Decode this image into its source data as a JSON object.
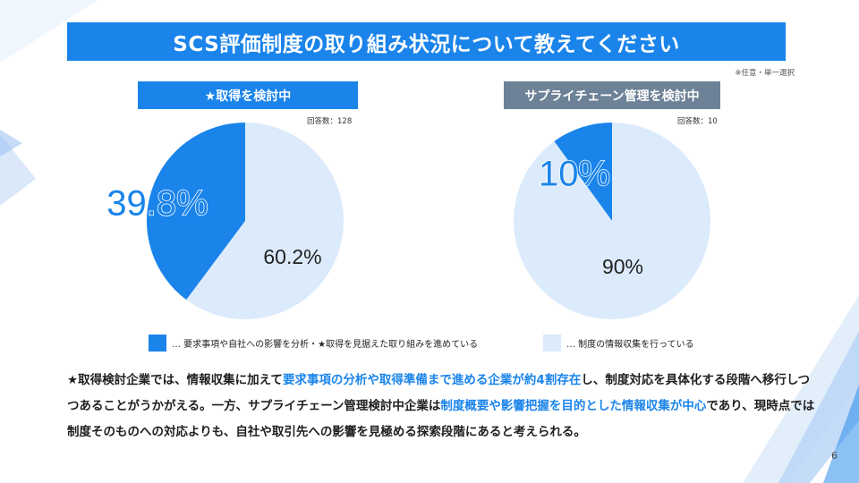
{
  "title": "SCS評価制度の取り組み状況について教えてください",
  "note": "※任意・単一選択",
  "colors": {
    "primary": "#1a84ea",
    "light": "#dcebfb",
    "gray_header": "#6d8297"
  },
  "panels": [
    {
      "header": "★取得を検討中",
      "respondents": "回答数：128"
    },
    {
      "header": "サプライチェーン管理を検討中",
      "respondents": "回答数：10"
    }
  ],
  "chart_data": [
    {
      "type": "pie",
      "title": "★取得を検討中",
      "respondents": 128,
      "slices": [
        {
          "label": "… 要求事項や自社への影響を分析・★取得を見据えた取り組みを進めている",
          "value": 39.8,
          "display": "39.8%"
        },
        {
          "label": "… 制度の情報収集を行っている",
          "value": 60.2,
          "display": "60.2%"
        }
      ]
    },
    {
      "type": "pie",
      "title": "サプライチェーン管理を検討中",
      "respondents": 10,
      "slices": [
        {
          "label": "… 要求事項や自社への影響を分析・★取得を見据えた取り組みを進めている",
          "value": 10,
          "display": "10%"
        },
        {
          "label": "… 制度の情報収集を行っている",
          "value": 90,
          "display": "90%"
        }
      ]
    }
  ],
  "legend": [
    {
      "label": "… 要求事項や自社への影響を分析・★取得を見据えた取り組みを進めている"
    },
    {
      "label": "… 制度の情報収集を行っている"
    }
  ],
  "summary": {
    "t1": "★取得検討企業では、情報収集に加えて",
    "h1": "要求事項の分析や取得準備まで進める企業が約4割存在",
    "t2": "し、制度対応を具体化する段階へ移行しつつあることがうかがえる。一方、サプライチェーン管理検討中企業は",
    "h2": "制度概要や影響把握を目的とした情報収集が中心",
    "t3": "であり、現時点では制度そのものへの対応よりも、自社や取引先への影響を見極める探索段階にあると考えられる。"
  },
  "page_number": "6"
}
